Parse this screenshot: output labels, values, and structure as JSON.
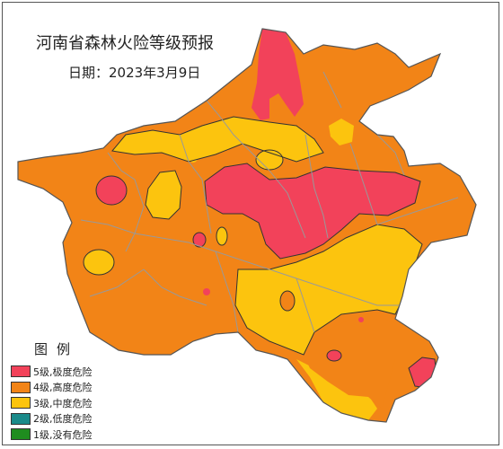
{
  "map": {
    "title": "河南省森林火险等级预报",
    "date": "日期：2023年3月9日"
  },
  "legend": {
    "title": "图例",
    "items": [
      {
        "label": "5级,极度危险",
        "color": "#f2425a"
      },
      {
        "label": "4级,高度危险",
        "color": "#f28417"
      },
      {
        "label": "3级,中度危险",
        "color": "#fcc40e"
      },
      {
        "label": "2级,低度危险",
        "color": "#1a8a8a"
      },
      {
        "label": "1级,没有危险",
        "color": "#1f8c1f"
      }
    ]
  },
  "colors": {
    "boundary": "#999999",
    "outline": "#555555"
  }
}
